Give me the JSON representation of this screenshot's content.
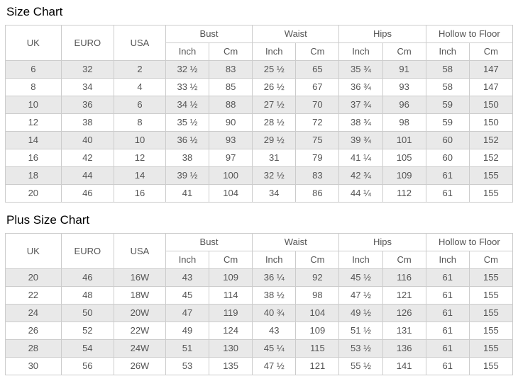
{
  "columns": {
    "uk": "UK",
    "euro": "EURO",
    "usa": "USA",
    "groups": [
      "Bust",
      "Waist",
      "Hips",
      "Hollow to Floor"
    ],
    "subheaders": [
      "Inch",
      "Cm"
    ]
  },
  "size_chart": {
    "title": "Size Chart",
    "rows": [
      [
        "6",
        "32",
        "2",
        "32 ½",
        "83",
        "25 ½",
        "65",
        "35 ¾",
        "91",
        "58",
        "147"
      ],
      [
        "8",
        "34",
        "4",
        "33 ½",
        "85",
        "26 ½",
        "67",
        "36 ¾",
        "93",
        "58",
        "147"
      ],
      [
        "10",
        "36",
        "6",
        "34 ½",
        "88",
        "27 ½",
        "70",
        "37 ¾",
        "96",
        "59",
        "150"
      ],
      [
        "12",
        "38",
        "8",
        "35 ½",
        "90",
        "28 ½",
        "72",
        "38 ¾",
        "98",
        "59",
        "150"
      ],
      [
        "14",
        "40",
        "10",
        "36 ½",
        "93",
        "29 ½",
        "75",
        "39 ¾",
        "101",
        "60",
        "152"
      ],
      [
        "16",
        "42",
        "12",
        "38",
        "97",
        "31",
        "79",
        "41 ¼",
        "105",
        "60",
        "152"
      ],
      [
        "18",
        "44",
        "14",
        "39 ½",
        "100",
        "32 ½",
        "83",
        "42 ¾",
        "109",
        "61",
        "155"
      ],
      [
        "20",
        "46",
        "16",
        "41",
        "104",
        "34",
        "86",
        "44 ¼",
        "112",
        "61",
        "155"
      ]
    ]
  },
  "plus_size_chart": {
    "title": "Plus Size Chart",
    "rows": [
      [
        "20",
        "46",
        "16W",
        "43",
        "109",
        "36 ¼",
        "92",
        "45 ½",
        "116",
        "61",
        "155"
      ],
      [
        "22",
        "48",
        "18W",
        "45",
        "114",
        "38 ½",
        "98",
        "47 ½",
        "121",
        "61",
        "155"
      ],
      [
        "24",
        "50",
        "20W",
        "47",
        "119",
        "40 ¾",
        "104",
        "49 ½",
        "126",
        "61",
        "155"
      ],
      [
        "26",
        "52",
        "22W",
        "49",
        "124",
        "43",
        "109",
        "51 ½",
        "131",
        "61",
        "155"
      ],
      [
        "28",
        "54",
        "24W",
        "51",
        "130",
        "45 ¼",
        "115",
        "53 ½",
        "136",
        "61",
        "155"
      ],
      [
        "30",
        "56",
        "26W",
        "53",
        "135",
        "47 ½",
        "121",
        "55 ½",
        "141",
        "61",
        "155"
      ]
    ]
  },
  "colors": {
    "row_alt_background": "#e9e9e9",
    "border": "#cccccc",
    "cell_text": "#555555",
    "title_text": "#000000",
    "background": "#ffffff"
  }
}
